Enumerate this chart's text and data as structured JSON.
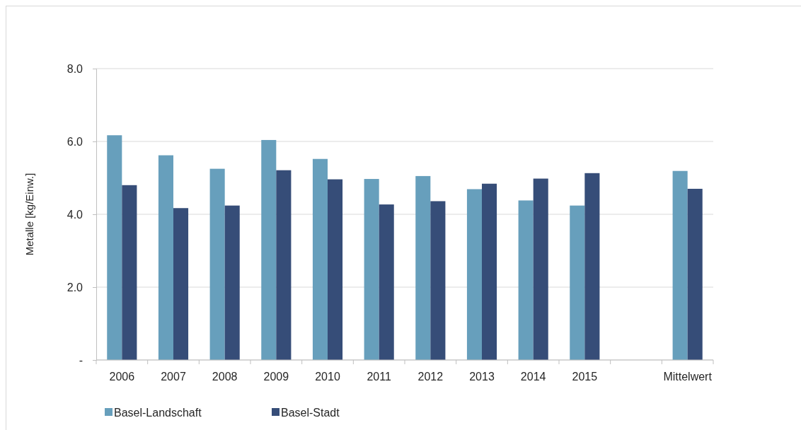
{
  "chart_data": {
    "type": "bar",
    "ylabel": "Metalle [kg/Einw.]",
    "categories": [
      "2006",
      "2007",
      "2008",
      "2009",
      "2010",
      "2011",
      "2012",
      "2013",
      "2014",
      "2015",
      null,
      "Mittelwert"
    ],
    "series": [
      {
        "name": "Basel-Landschaft",
        "color": "#679fbc",
        "values": [
          6.17,
          5.62,
          5.25,
          6.04,
          5.52,
          4.97,
          5.05,
          4.69,
          4.38,
          4.24,
          null,
          5.19
        ]
      },
      {
        "name": "Basel-Stadt",
        "color": "#364d78",
        "values": [
          4.8,
          4.17,
          4.24,
          5.21,
          4.96,
          4.27,
          4.36,
          4.84,
          4.98,
          5.13,
          null,
          4.7
        ]
      }
    ],
    "ylim": [
      0,
      8
    ],
    "yticks": [
      {
        "value": 0,
        "label": "-"
      },
      {
        "value": 2,
        "label": "2.0"
      },
      {
        "value": 4,
        "label": "4.0"
      },
      {
        "value": 6,
        "label": "6.0"
      },
      {
        "value": 8,
        "label": "8.0"
      }
    ],
    "grid": "y",
    "legend": "bottom"
  }
}
